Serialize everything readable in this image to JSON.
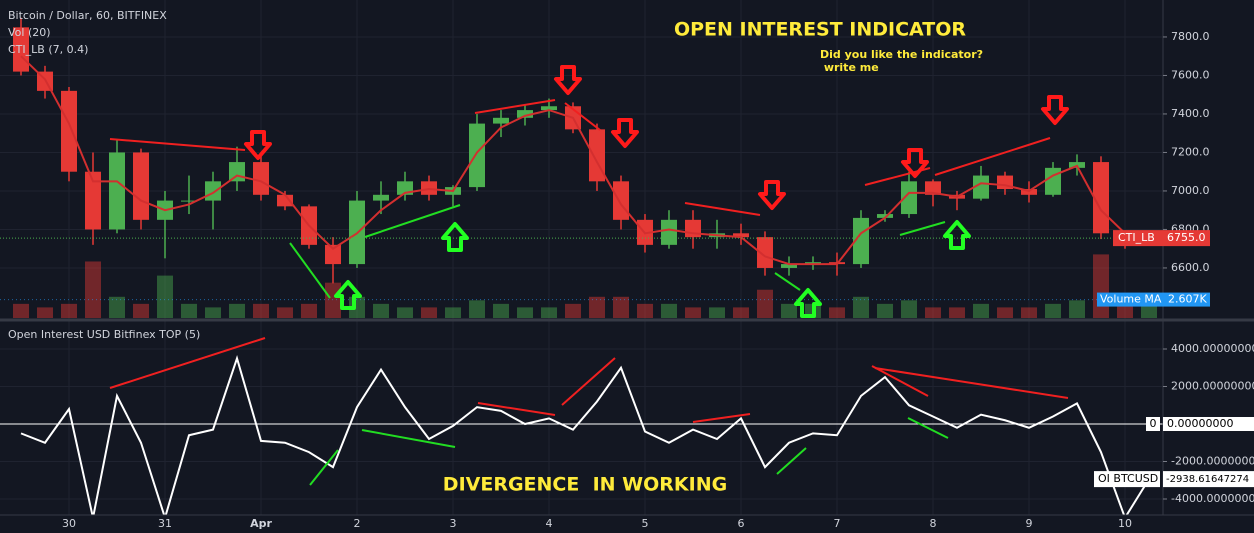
{
  "chart_data": [
    {
      "type": "candlestick",
      "title": "Bitcoin / Dollar, 60, BITFINEX",
      "indicators": [
        "Vol (20)",
        "CTI_LB (7, 0.4)"
      ],
      "open": [
        7850,
        7620,
        7520,
        7100,
        6800,
        7200,
        6850,
        6950,
        6950,
        7050,
        7150,
        6980,
        6920,
        6720,
        6620,
        6950,
        6980,
        7050,
        6980,
        7020,
        7350,
        7380,
        7420,
        7440,
        7320,
        7050,
        6850,
        6720,
        6850,
        6760,
        6780,
        6760,
        6600,
        6620,
        6630,
        6620,
        6860,
        6880,
        7050,
        6980,
        6960,
        7080,
        7010,
        6980,
        7120,
        7150,
        6780,
        6740
      ],
      "high": [
        7900,
        7650,
        7540,
        7200,
        7270,
        7220,
        7000,
        7080,
        7100,
        7230,
        7180,
        7000,
        6930,
        6760,
        7000,
        7050,
        7100,
        7080,
        7030,
        7400,
        7420,
        7450,
        7480,
        7460,
        7350,
        7080,
        6880,
        6900,
        6900,
        6850,
        6830,
        6790,
        6660,
        6660,
        6680,
        6900,
        6900,
        7100,
        7060,
        7000,
        7130,
        7100,
        7050,
        7150,
        7190,
        7180,
        6790,
        6770
      ],
      "low": [
        7600,
        7480,
        7050,
        6720,
        6780,
        6800,
        6650,
        6880,
        6800,
        7000,
        6950,
        6900,
        6700,
        6520,
        6600,
        6880,
        6950,
        6950,
        6920,
        7000,
        7280,
        7340,
        7380,
        7300,
        7000,
        6800,
        6680,
        6700,
        6700,
        6700,
        6720,
        6560,
        6560,
        6590,
        6560,
        6600,
        6840,
        6860,
        6920,
        6900,
        6950,
        6980,
        6940,
        6970,
        7080,
        6750,
        6700,
        6720
      ],
      "close": [
        7620,
        7520,
        7100,
        6800,
        7200,
        6850,
        6950,
        6950,
        7050,
        7150,
        6980,
        6920,
        6720,
        6620,
        6950,
        6980,
        7050,
        6980,
        7020,
        7350,
        7380,
        7420,
        7440,
        7320,
        7050,
        6850,
        6720,
        6850,
        6760,
        6780,
        6760,
        6600,
        6620,
        6630,
        6620,
        6860,
        6880,
        7050,
        6980,
        6960,
        7080,
        7010,
        6980,
        7120,
        7150,
        6780,
        6740,
        6755
      ],
      "up_color": "#4caf50",
      "down_color": "#e53935",
      "cti": {
        "name": "CTI_LB",
        "color": "#d32f2f",
        "values": [
          7700,
          7580,
          7350,
          7050,
          7050,
          6950,
          6900,
          6930,
          6990,
          7080,
          7050,
          6980,
          6820,
          6700,
          6780,
          6900,
          6990,
          7010,
          7000,
          7200,
          7330,
          7390,
          7420,
          7380,
          7150,
          6930,
          6780,
          6800,
          6780,
          6770,
          6760,
          6660,
          6620,
          6620,
          6620,
          6780,
          6860,
          6990,
          6990,
          6970,
          7040,
          7030,
          7000,
          7080,
          7130,
          6900,
          6780,
          6755
        ],
        "value_labels": [
          null,
          null,
          null,
          null,
          null,
          null,
          null,
          null,
          null,
          null,
          null,
          null,
          null,
          null,
          null,
          null,
          null,
          null,
          null,
          null,
          null,
          null,
          null,
          null,
          null,
          null,
          null,
          null,
          null,
          null,
          null,
          null,
          null,
          null,
          null,
          null,
          null,
          null,
          null,
          null,
          null,
          null,
          null,
          null,
          null,
          null,
          null,
          "6755.0"
        ]
      },
      "volume": {
        "values": [
          2,
          1.5,
          2,
          8,
          3,
          2,
          6,
          2,
          1.5,
          2,
          2,
          1.5,
          2,
          5,
          3,
          2,
          1.5,
          1.5,
          1.5,
          2.5,
          2,
          1.5,
          1.5,
          2,
          3,
          3,
          2,
          2,
          1.5,
          1.5,
          1.5,
          4,
          2,
          2,
          1.5,
          3,
          2,
          2.5,
          1.5,
          1.5,
          2,
          1.5,
          1.5,
          2,
          2.5,
          9,
          3,
          2
        ],
        "lim": [
          0,
          45
        ],
        "ma": {
          "name": "Volume MA",
          "value": 2.607,
          "label": "2.607K",
          "color": "#2196f3"
        }
      },
      "ylim": [
        6340,
        7992
      ],
      "yticks": [
        {
          "value": 6600,
          "label": "6600.0"
        },
        {
          "value": 6800,
          "label": "6800.0"
        },
        {
          "value": 7000,
          "label": "7000.0"
        },
        {
          "value": 7200,
          "label": "7200.0"
        },
        {
          "value": 7400,
          "label": "7400.0"
        },
        {
          "value": 7600,
          "label": "7600.0"
        },
        {
          "value": 7800,
          "label": "7800.0"
        }
      ],
      "grid": true
    },
    {
      "type": "line",
      "title": "Open Interest USD Bitfinex TOP (5)",
      "categories": [
        null,
        null,
        "30",
        null,
        null,
        null,
        "31",
        null,
        null,
        null,
        "Apr",
        null,
        null,
        null,
        "2",
        null,
        null,
        null,
        "3",
        null,
        null,
        null,
        "4",
        null,
        null,
        null,
        "5",
        null,
        null,
        null,
        "6",
        null,
        null,
        null,
        "7",
        null,
        null,
        null,
        "8",
        null,
        null,
        null,
        "9",
        null,
        null,
        null,
        "10",
        null
      ],
      "series": [
        {
          "name": "OI BTCUSD",
          "color": "#ffffff",
          "values": [
            -500,
            -1000,
            800,
            -5000,
            1500,
            -1000,
            -5000,
            -600,
            -300,
            3500,
            -900,
            -1000,
            -1500,
            -2300,
            900,
            2900,
            900,
            -800,
            -100,
            900,
            700,
            0,
            300,
            -300,
            1200,
            3000,
            -400,
            -1000,
            -300,
            -800,
            300,
            -2300,
            -1000,
            -500,
            -600,
            1500,
            2500,
            1000,
            400,
            -200,
            500,
            200,
            -200,
            400,
            1100,
            -1500,
            -5000,
            -2938.61647274
          ],
          "value_labels": [
            null,
            null,
            null,
            null,
            null,
            null,
            null,
            null,
            null,
            null,
            null,
            null,
            null,
            null,
            null,
            null,
            null,
            null,
            null,
            null,
            null,
            null,
            null,
            null,
            null,
            null,
            null,
            null,
            null,
            null,
            null,
            null,
            null,
            null,
            null,
            null,
            null,
            null,
            null,
            null,
            null,
            null,
            null,
            null,
            null,
            null,
            null,
            "-2938.61647274"
          ]
        }
      ],
      "zero_line": {
        "name": "0",
        "value": 0,
        "label": "0.00000000"
      },
      "ylim": [
        -4853,
        5440
      ],
      "yticks": [
        {
          "value": 4000,
          "label": "4000.00000000"
        },
        {
          "value": 2000,
          "label": "2000.00000000"
        },
        {
          "value": -2000,
          "label": "-2000.00000000"
        },
        {
          "value": -4000,
          "label": "-4000.00000000"
        }
      ],
      "grid": true
    }
  ],
  "annotations": [
    "OPEN INTEREST INDICATOR",
    "Did you like the indicator?",
    " write me",
    "DIVERGENCE  IN WORKING"
  ]
}
